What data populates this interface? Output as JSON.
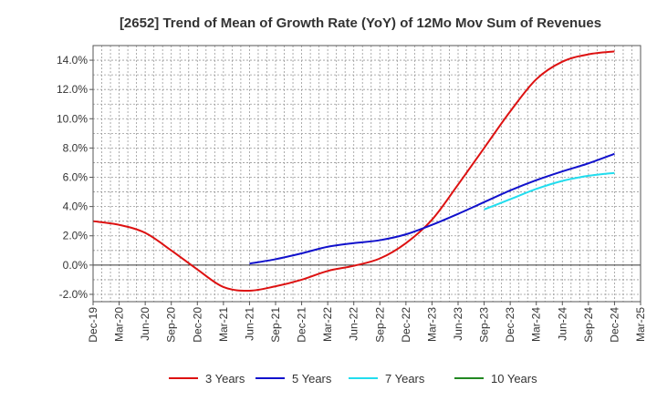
{
  "chart_data": {
    "type": "line",
    "title": "[2652]  Trend of Mean of Growth Rate (YoY) of 12Mo Mov Sum of Revenues",
    "xlabel": "",
    "ylabel": "",
    "ylim": [
      -2.5,
      15.0
    ],
    "yticks": [
      -2.0,
      0.0,
      2.0,
      4.0,
      6.0,
      8.0,
      10.0,
      12.0,
      14.0
    ],
    "ytick_labels": [
      "-2.0%",
      "0.0%",
      "2.0%",
      "4.0%",
      "6.0%",
      "8.0%",
      "10.0%",
      "12.0%",
      "14.0%"
    ],
    "x_labels": [
      "Dec-19",
      "Mar-20",
      "Jun-20",
      "Sep-20",
      "Dec-20",
      "Mar-21",
      "Jun-21",
      "Sep-21",
      "Dec-21",
      "Mar-22",
      "Jun-22",
      "Sep-22",
      "Dec-22",
      "Mar-23",
      "Jun-23",
      "Sep-23",
      "Dec-23",
      "Mar-24",
      "Jun-24",
      "Sep-24",
      "Dec-24",
      "Mar-25"
    ],
    "grid": true,
    "legend_position": "bottom",
    "series": [
      {
        "name": "3 Years",
        "color": "#dd1111",
        "x": [
          0,
          1,
          2,
          3,
          4,
          5,
          6,
          7,
          8,
          9,
          10,
          11,
          12,
          13,
          14,
          15,
          16,
          17,
          18,
          19,
          20
        ],
        "values": [
          3.0,
          2.75,
          2.2,
          1.0,
          -0.3,
          -1.5,
          -1.75,
          -1.45,
          -1.0,
          -0.4,
          -0.05,
          0.45,
          1.5,
          3.1,
          5.5,
          8.0,
          10.5,
          12.7,
          13.9,
          14.4,
          14.6
        ]
      },
      {
        "name": "5 Years",
        "color": "#1111cc",
        "x": [
          6,
          7,
          8,
          9,
          10,
          11,
          12,
          13,
          14,
          15,
          16,
          17,
          18,
          19,
          20
        ],
        "values": [
          0.1,
          0.4,
          0.8,
          1.25,
          1.5,
          1.7,
          2.1,
          2.75,
          3.5,
          4.3,
          5.1,
          5.8,
          6.4,
          6.95,
          7.6
        ]
      },
      {
        "name": "7 Years",
        "color": "#22ddee",
        "x": [
          15,
          16,
          17,
          18,
          19,
          20
        ],
        "values": [
          3.8,
          4.5,
          5.2,
          5.75,
          6.1,
          6.3
        ]
      },
      {
        "name": "10 Years",
        "color": "#228822",
        "x": [],
        "values": []
      }
    ]
  }
}
